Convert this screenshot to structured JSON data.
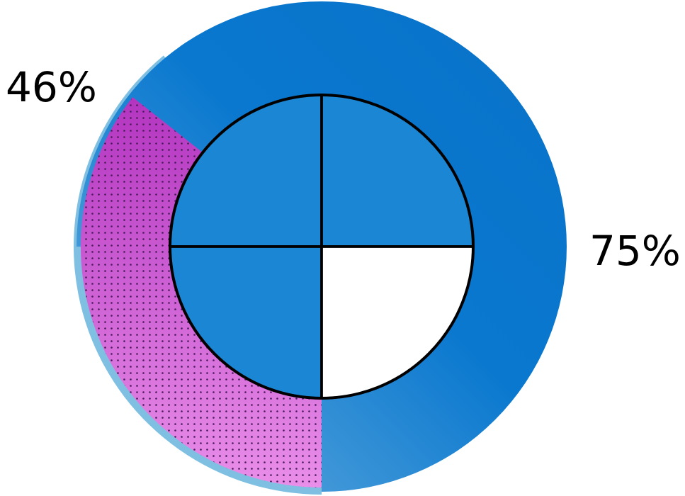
{
  "chart_data": {
    "type": "pie",
    "labels": [
      {
        "text": "46%",
        "value": 46
      },
      {
        "text": "75%",
        "value": 75
      }
    ],
    "outer_ring": {
      "fill_value": 75,
      "fill_color": "#0a78cf",
      "fill_color_light": "#6fb2df",
      "track_color": "#e5e5e5",
      "edge_color": "#7fc0e2"
    },
    "overlay_ring": {
      "fill_value": 46,
      "fill_color": "#b335c0",
      "fill_color_light": "#e98ee9",
      "dot_color": "#4a1a5a"
    },
    "inner_circle": {
      "quarters_filled": 3,
      "quarters_total": 4,
      "fill_value": 75,
      "fill_color": "#1a86d4",
      "empty_color": "#ffffff",
      "line_color": "#000000"
    }
  }
}
